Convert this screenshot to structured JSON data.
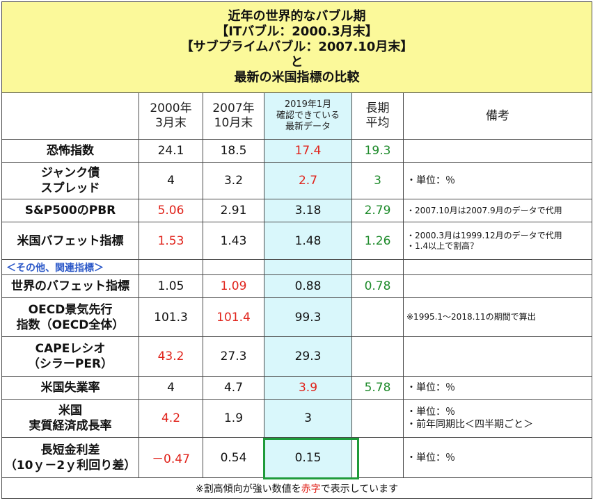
{
  "title": {
    "line1": "近年の世界的なバブル期",
    "line2": "【ITバブル：2000.3月末】",
    "line3": "【サブプライムバブル：2007.10月末】",
    "line4": "と",
    "line5": "最新の米国指標の比較"
  },
  "header": {
    "c2000_l1": "2000年",
    "c2000_l2": "3月末",
    "c2007_l1": "2007年",
    "c2007_l2": "10月末",
    "latest_l1": "2019年1月",
    "latest_l2": "確認できている",
    "latest_l3": "最新データ",
    "avg_l1": "長期",
    "avg_l2": "平均",
    "notes": "備考"
  },
  "section_label": "＜その他、関連指標＞",
  "rows": [
    {
      "label": [
        "恐怖指数"
      ],
      "v2000": "24.1",
      "v2007": "18.5",
      "latest": "17.4",
      "avg": "19.3",
      "notes": []
    },
    {
      "label": [
        "ジャンク債",
        "スプレッド"
      ],
      "v2000": "4",
      "v2007": "3.2",
      "latest": "2.7",
      "avg": "3",
      "notes": [
        "・単位：％"
      ]
    },
    {
      "label": [
        "S&P500のPBR"
      ],
      "v2000": "5.06",
      "v2007": "2.91",
      "latest": "3.18",
      "avg": "2.79",
      "notes": [
        "・2007.10月は2007.9月のデータで代用"
      ]
    },
    {
      "label": [
        "米国バフェット指標"
      ],
      "v2000": "1.53",
      "v2007": "1.43",
      "latest": "1.48",
      "avg": "1.26",
      "notes": [
        "・2000.3月は1999.12月のデータで代用",
        "・1.4以上で割高？"
      ]
    },
    {
      "label": [
        "世界のバフェット指標"
      ],
      "v2000": "1.05",
      "v2007": "1.09",
      "latest": "0.88",
      "avg": "0.78",
      "notes": []
    },
    {
      "label": [
        "OECD景気先行",
        "指数（OECD全体）"
      ],
      "v2000": "101.3",
      "v2007": "101.4",
      "latest": "99.3",
      "avg": "",
      "notes": [
        "※1995.1～2018.11の期間で算出"
      ]
    },
    {
      "label": [
        "CAPEレシオ",
        "（シラーPER）"
      ],
      "v2000": "43.2",
      "v2007": "27.3",
      "latest": "29.3",
      "avg": "",
      "notes": []
    },
    {
      "label": [
        "米国失業率"
      ],
      "v2000": "4",
      "v2007": "4.7",
      "latest": "3.9",
      "avg": "5.78",
      "notes": [
        "・単位：％"
      ]
    },
    {
      "label": [
        "米国",
        "実質経済成長率"
      ],
      "v2000": "4.2",
      "v2007": "1.9",
      "latest": "3",
      "avg": "",
      "notes": [
        "・単位：％",
        "・前年同期比＜四半期ごと＞"
      ]
    },
    {
      "label": [
        "長短金利差",
        "（10ｙ－2ｙ利回り差）"
      ],
      "v2000": "－0.47",
      "v2007": "0.54",
      "latest": "0.15",
      "avg": "",
      "notes": [
        "・単位：％"
      ]
    }
  ],
  "footer": {
    "pre": "※割高傾向が強い数値を",
    "red_word": "赤字",
    "post": "で表示しています"
  },
  "colors": {
    "title_bg": "#fbf99a",
    "latest_col_bg": "#d9f7fb",
    "expensive_red": "#e0231b",
    "average_green": "#1d8a2a",
    "section_blue": "#2a57c8",
    "highlight_border": "#1e9b3a"
  }
}
